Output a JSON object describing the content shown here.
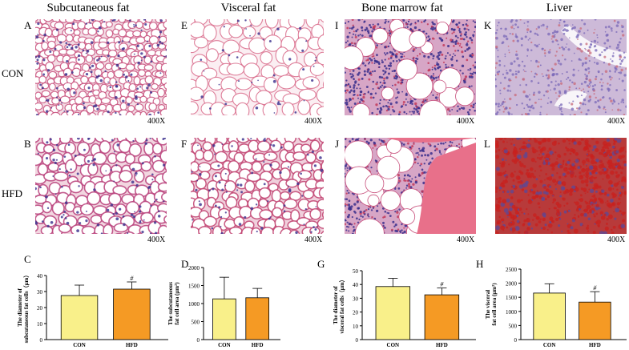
{
  "columns": {
    "subcutaneous": "Subcutaneous fat",
    "visceral": "Visceral fat",
    "bone_marrow": "Bone marrow fat",
    "liver": "Liver"
  },
  "rows": {
    "con": "CON",
    "hfd": "HFD"
  },
  "panels": {
    "A": "A",
    "B": "B",
    "E": "E",
    "F": "F",
    "I": "I",
    "J": "J",
    "K": "K",
    "L": "L",
    "C": "C",
    "D": "D",
    "G": "G",
    "H": "H"
  },
  "magnification": "400X",
  "colors": {
    "con_bar": "#f9f08a",
    "hfd_bar": "#f59a24",
    "he_stain_background": "#ffffff",
    "he_stain_membrane": "#c8507c",
    "nucleus": "#3a2e8c",
    "oil_red": "#c8201e",
    "bone": "#e8708a"
  },
  "chart_data": [
    {
      "panel": "C",
      "type": "bar",
      "categories": [
        "CON",
        "HFD"
      ],
      "values": [
        27.5,
        31.5
      ],
      "errors": [
        6.5,
        4.5
      ],
      "ylabel_lines": [
        "The diameter of",
        "subcutaneous fat cells（μm）"
      ],
      "ylim": [
        0,
        40
      ],
      "ticks": [
        0,
        10,
        20,
        30,
        40
      ],
      "annotations": [
        "",
        "#"
      ]
    },
    {
      "panel": "D",
      "type": "bar",
      "categories": [
        "CON",
        "HFD"
      ],
      "values": [
        1130,
        1160
      ],
      "errors": [
        600,
        260
      ],
      "ylabel_lines": [
        "The subcutaneous",
        "fat cell area (μm²)"
      ],
      "ylim": [
        0,
        2000
      ],
      "ticks": [
        0,
        500,
        1000,
        1500,
        2000
      ],
      "annotations": [
        "",
        ""
      ]
    },
    {
      "panel": "G",
      "type": "bar",
      "categories": [
        "CON",
        "HFD"
      ],
      "values": [
        38.5,
        32.5
      ],
      "errors": [
        6,
        5
      ],
      "ylabel_lines": [
        "The diameter of",
        "visceral fat cells（μm）"
      ],
      "ylim": [
        0,
        50
      ],
      "ticks": [
        0,
        10,
        20,
        30,
        40,
        50
      ],
      "annotations": [
        "",
        "#"
      ]
    },
    {
      "panel": "H",
      "type": "bar",
      "categories": [
        "CON",
        "HFD"
      ],
      "values": [
        1650,
        1330
      ],
      "errors": [
        330,
        370
      ],
      "ylabel_lines": [
        "The visceral",
        "fat cell area (μm²)"
      ],
      "ylim": [
        0,
        2500
      ],
      "ticks": [
        0,
        500,
        1000,
        1500,
        2000,
        2500
      ],
      "annotations": [
        "",
        "#"
      ]
    }
  ]
}
